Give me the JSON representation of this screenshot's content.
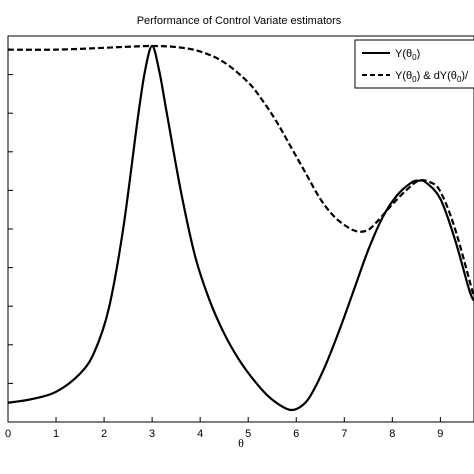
{
  "chart_data": {
    "type": "line",
    "title": "Performance of Control Variate estimators",
    "xlabel": "θ",
    "ylabel": "",
    "xlim": [
      0,
      9.7
    ],
    "ylim": [
      0,
      1
    ],
    "x_ticks": [
      "0",
      "1",
      "2",
      "3",
      "4",
      "5",
      "6",
      "7",
      "8",
      "9"
    ],
    "y_tick_count": 10,
    "grid": false,
    "legend_position": "top-right",
    "series": [
      {
        "name_parts": [
          "Y(θ",
          "0",
          ")"
        ],
        "style": "solid",
        "color": "#000000",
        "x": [
          0,
          0.5,
          1.0,
          1.5,
          1.8,
          2.1,
          2.4,
          2.7,
          2.85,
          3.0,
          3.15,
          3.3,
          3.6,
          3.9,
          4.2,
          4.5,
          4.8,
          5.1,
          5.4,
          5.7,
          5.9,
          6.1,
          6.3,
          6.6,
          6.9,
          7.2,
          7.5,
          7.8,
          8.1,
          8.4,
          8.55,
          8.7,
          9.0,
          9.3,
          9.6,
          9.7
        ],
        "y": [
          0.02,
          0.03,
          0.05,
          0.1,
          0.16,
          0.28,
          0.5,
          0.8,
          0.93,
          1.0,
          0.93,
          0.82,
          0.6,
          0.42,
          0.3,
          0.21,
          0.14,
          0.085,
          0.04,
          0.01,
          0.0,
          0.01,
          0.04,
          0.12,
          0.22,
          0.33,
          0.44,
          0.53,
          0.59,
          0.625,
          0.63,
          0.625,
          0.58,
          0.47,
          0.33,
          0.3
        ]
      },
      {
        "name_parts": [
          "Y(θ",
          "0",
          ") & dY(θ",
          "0",
          ")/"
        ],
        "style": "dashed",
        "color": "#000000",
        "x": [
          0,
          1.0,
          2.0,
          2.5,
          3.0,
          3.5,
          4.0,
          4.5,
          5.0,
          5.3,
          5.6,
          5.9,
          6.2,
          6.5,
          6.8,
          7.1,
          7.3,
          7.5,
          7.7,
          8.0,
          8.3,
          8.55,
          8.8,
          9.0,
          9.3,
          9.7
        ],
        "y": [
          0.99,
          0.99,
          0.995,
          0.998,
          1.0,
          0.997,
          0.985,
          0.955,
          0.9,
          0.85,
          0.79,
          0.72,
          0.65,
          0.58,
          0.53,
          0.5,
          0.49,
          0.495,
          0.52,
          0.565,
          0.605,
          0.63,
          0.625,
          0.6,
          0.5,
          0.31
        ]
      }
    ]
  }
}
